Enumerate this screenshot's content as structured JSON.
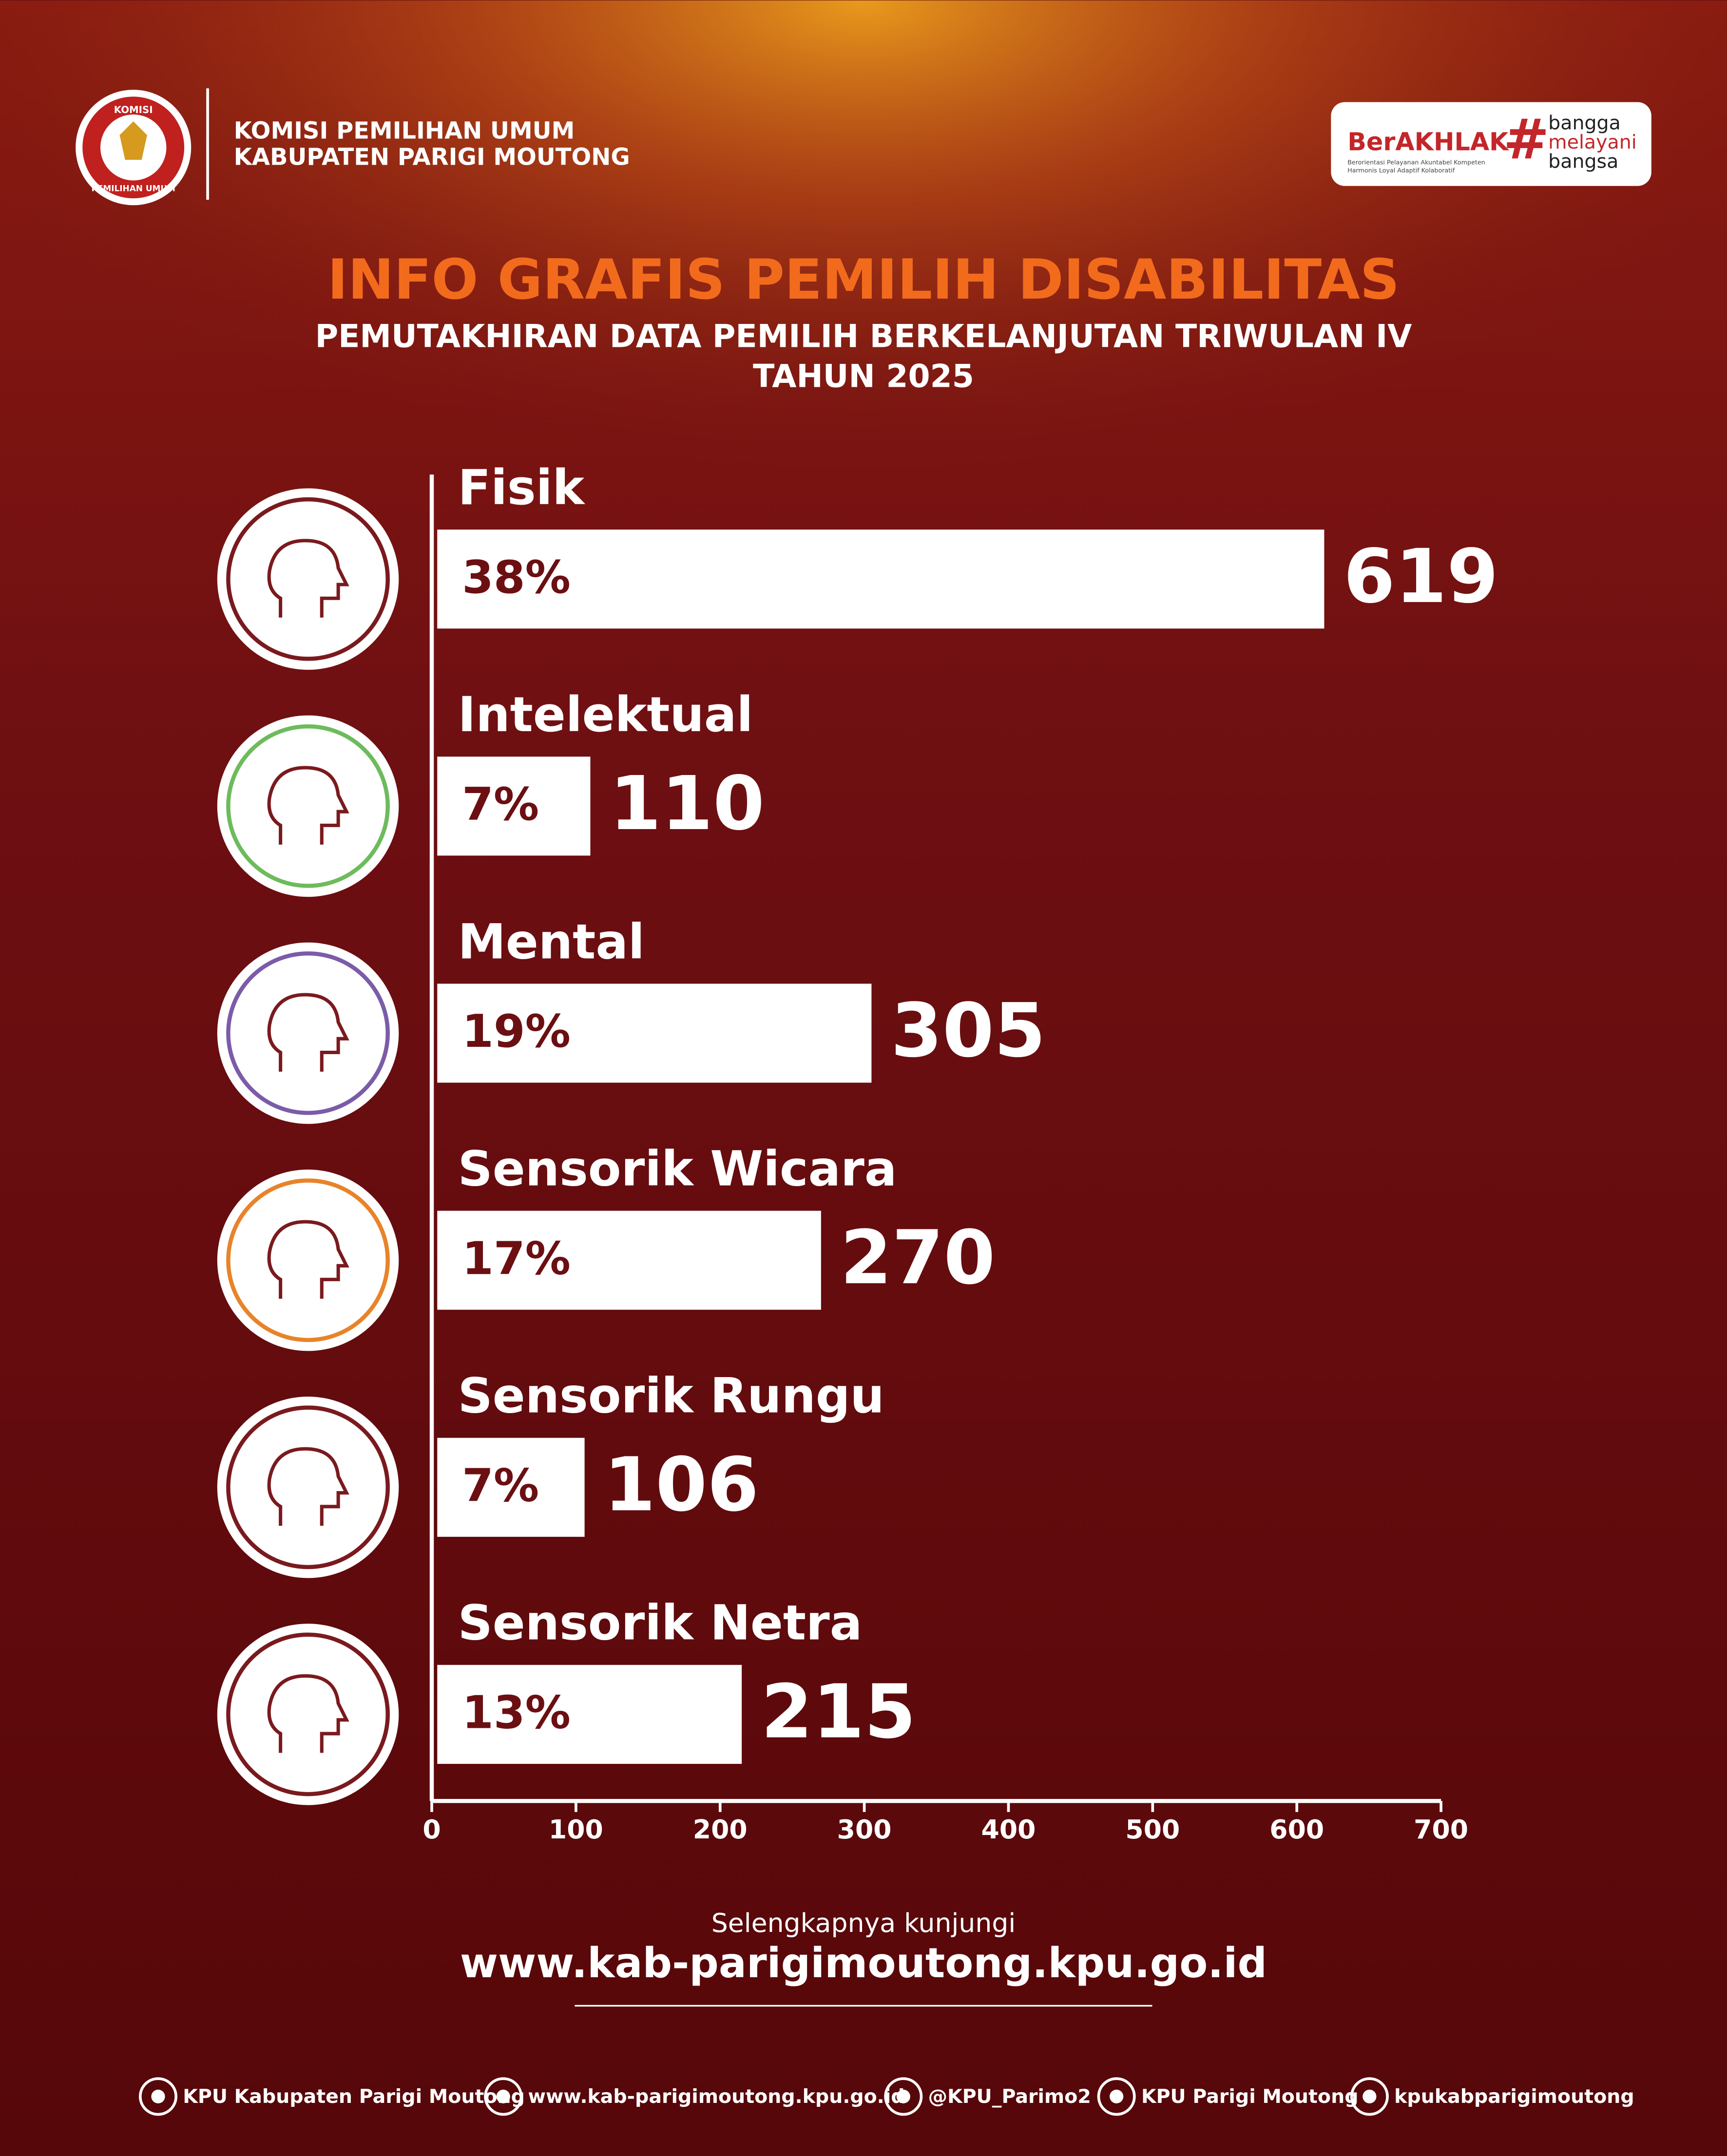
{
  "header": {
    "logo_top": "KOMISI",
    "logo_bottom": "PEMILIHAN UMUM",
    "org_line1": "KOMISI PEMILIHAN UMUM",
    "org_line2": "KABUPATEN PARIGI MOUTONG",
    "badge_brand": "BerAKHLAK",
    "badge_tagline_1": "Berorientasi Pelayanan Akuntabel Kompeten",
    "badge_tagline_2": "Harmonis Loyal Adaptif Kolaboratif",
    "badge_hash": "#",
    "badge_hashtag": [
      "bangga",
      "melayani",
      "bangsa"
    ]
  },
  "chart_data": {
    "type": "bar",
    "orientation": "horizontal",
    "title": "INFO GRAFIS PEMILIH DISABILITAS",
    "subtitle_lines": [
      "PEMUTAKHIRAN DATA PEMILIH BERKELANJUTAN TRIWULAN IV",
      "TAHUN 2025"
    ],
    "categories": [
      "Fisik",
      "Intelektual",
      "Mental",
      "Sensorik Wicara",
      "Sensorik Rungu",
      "Sensorik Netra"
    ],
    "values": [
      619,
      110,
      305,
      270,
      106,
      215
    ],
    "share_labels": [
      "38%",
      "7%",
      "19%",
      "17%",
      "7%",
      "13%"
    ],
    "color": "#ffffff",
    "xlim": [
      0,
      700
    ],
    "xticks": [
      0,
      100,
      200,
      300,
      400,
      500,
      600,
      700
    ]
  },
  "footer": {
    "prompt": "Selengkapnya kunjungi",
    "url": "www.kab-parigimoutong.kpu.go.id",
    "socials": [
      "KPU Kabupaten Parigi Moutong",
      "www.kab-parigimoutong.kpu.go.id",
      "@KPU_Parimo2",
      "KPU Parigi Moutong",
      "kpukabparigimoutong"
    ]
  }
}
